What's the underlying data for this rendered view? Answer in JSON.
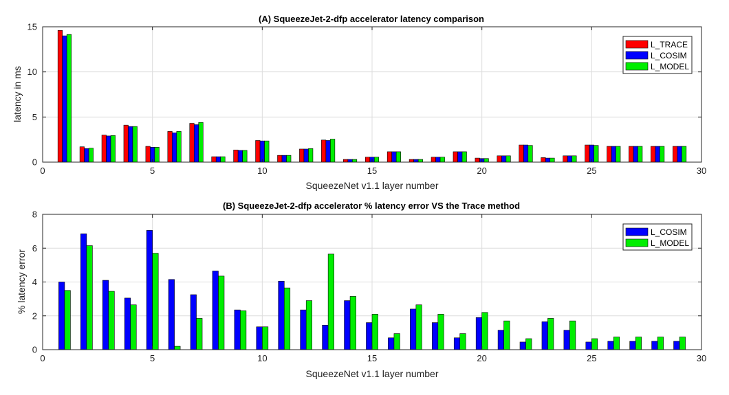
{
  "chart_data": [
    {
      "type": "bar",
      "title": "(A) SqueezeJet-2-dfp accelerator latency comparison",
      "xlabel": "SqueezeNet v1.1 layer number",
      "ylabel": "latency in ms",
      "xlim": [
        0,
        30
      ],
      "ylim": [
        0,
        15
      ],
      "xticks": [
        0,
        5,
        10,
        15,
        20,
        25,
        30
      ],
      "yticks": [
        0,
        5,
        10,
        15
      ],
      "grid": true,
      "legend_position": "top-right",
      "x": [
        1,
        2,
        3,
        4,
        5,
        6,
        7,
        8,
        9,
        10,
        11,
        12,
        13,
        14,
        15,
        16,
        17,
        18,
        19,
        20,
        21,
        22,
        23,
        24,
        25,
        26,
        27,
        28,
        29
      ],
      "series": [
        {
          "name": "L_TRACE",
          "color": "#ff0000",
          "values": [
            14.6,
            1.7,
            3.0,
            4.1,
            1.75,
            3.4,
            4.3,
            0.6,
            1.35,
            2.4,
            0.75,
            1.45,
            2.45,
            0.3,
            0.55,
            1.15,
            0.3,
            0.55,
            1.15,
            0.45,
            0.7,
            1.9,
            0.5,
            0.7,
            1.9,
            1.75,
            1.75,
            1.75,
            1.75
          ]
        },
        {
          "name": "L_COSIM",
          "color": "#0000ff",
          "values": [
            14.0,
            1.5,
            2.9,
            3.95,
            1.65,
            3.25,
            4.15,
            0.6,
            1.3,
            2.35,
            0.75,
            1.45,
            2.4,
            0.3,
            0.55,
            1.15,
            0.3,
            0.55,
            1.15,
            0.4,
            0.7,
            1.9,
            0.45,
            0.7,
            1.9,
            1.75,
            1.75,
            1.75,
            1.75
          ]
        },
        {
          "name": "L_MODEL",
          "color": "#00ee00",
          "values": [
            14.15,
            1.55,
            2.95,
            3.95,
            1.65,
            3.4,
            4.4,
            0.6,
            1.3,
            2.35,
            0.75,
            1.5,
            2.55,
            0.3,
            0.55,
            1.15,
            0.3,
            0.55,
            1.15,
            0.4,
            0.7,
            1.85,
            0.45,
            0.7,
            1.85,
            1.75,
            1.75,
            1.75,
            1.75
          ]
        }
      ]
    },
    {
      "type": "bar",
      "title": "(B) SqueezeJet-2-dfp accelerator % latency error VS the Trace method",
      "xlabel": "SqueezeNet v1.1 layer number",
      "ylabel": "% latency error",
      "xlim": [
        0,
        30
      ],
      "ylim": [
        0,
        8
      ],
      "xticks": [
        0,
        5,
        10,
        15,
        20,
        25,
        30
      ],
      "yticks": [
        0,
        2,
        4,
        6,
        8
      ],
      "grid": true,
      "legend_position": "top-right",
      "x": [
        1,
        2,
        3,
        4,
        5,
        6,
        7,
        8,
        9,
        10,
        11,
        12,
        13,
        14,
        15,
        16,
        17,
        18,
        19,
        20,
        21,
        22,
        23,
        24,
        25,
        26,
        27,
        28,
        29
      ],
      "series": [
        {
          "name": "L_COSIM",
          "color": "#0000ff",
          "values": [
            4.0,
            6.85,
            4.1,
            3.05,
            7.05,
            4.15,
            3.25,
            4.65,
            2.35,
            1.35,
            4.05,
            2.35,
            1.45,
            2.9,
            1.6,
            0.7,
            2.4,
            1.6,
            0.7,
            1.9,
            1.15,
            0.45,
            1.65,
            1.15,
            0.45,
            0.5,
            0.5,
            0.5,
            0.5
          ]
        },
        {
          "name": "L_MODEL",
          "color": "#00ee00",
          "values": [
            3.5,
            6.15,
            3.45,
            2.65,
            5.7,
            0.2,
            1.85,
            4.35,
            2.3,
            1.35,
            3.65,
            2.9,
            5.65,
            3.15,
            2.1,
            0.95,
            2.65,
            2.1,
            0.95,
            2.2,
            1.7,
            0.65,
            1.85,
            1.7,
            0.65,
            0.75,
            0.75,
            0.75,
            0.75
          ]
        }
      ]
    }
  ]
}
